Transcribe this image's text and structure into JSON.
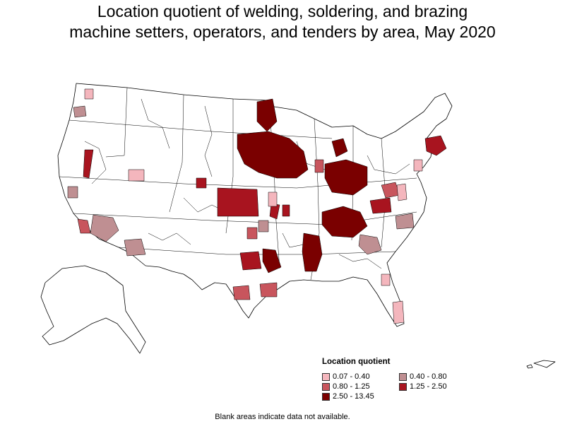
{
  "title_line1": "Location quotient of welding, soldering, and brazing",
  "title_line2": "machine setters, operators, and tenders by area, May 2020",
  "legend": {
    "title": "Location quotient",
    "items": [
      {
        "label": "0.07 - 0.40",
        "color": "#f4b6bd"
      },
      {
        "label": "0.40 - 0.80",
        "color": "#bf8f92"
      },
      {
        "label": "0.80 - 1.25",
        "color": "#c8555d"
      },
      {
        "label": "1.25 - 2.50",
        "color": "#a8141f"
      },
      {
        "label": "2.50 - 13.45",
        "color": "#7a0000"
      }
    ]
  },
  "note": "Blank areas indicate data not available.",
  "colors": {
    "border": "#000000",
    "blank": "#ffffff"
  }
}
